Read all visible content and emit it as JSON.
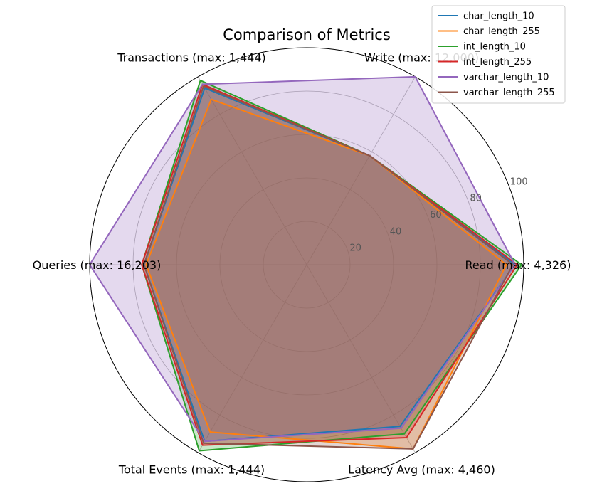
{
  "chart_data": {
    "type": "radar",
    "title": "Comparison of Metrics",
    "axes": [
      "Read (max: 4,326)",
      "Write (max: 12,000)",
      "Transactions (max: 1,444)",
      "Queries (max: 16,203)",
      "Total Events (max: 1,444)",
      "Latency Avg (max: 4,460)"
    ],
    "rlim": [
      0,
      100
    ],
    "r_ticks": [
      20,
      40,
      60,
      80,
      100
    ],
    "grid": true,
    "legend_position": "upper-right",
    "series": [
      {
        "name": "char_length_10",
        "color": "#1f77b4",
        "values": [
          96,
          58,
          94,
          75,
          94,
          86
        ]
      },
      {
        "name": "char_length_255",
        "color": "#ff7f0e",
        "values": [
          92,
          58,
          88,
          74,
          89,
          98
        ]
      },
      {
        "name": "int_length_10",
        "color": "#2ca02c",
        "values": [
          99,
          58,
          98,
          76,
          99,
          90
        ]
      },
      {
        "name": "int_length_255",
        "color": "#d62728",
        "values": [
          97,
          58,
          96,
          76,
          96,
          92
        ]
      },
      {
        "name": "varchar_length_10",
        "color": "#9467bd",
        "values": [
          96,
          100,
          96,
          100,
          94,
          87
        ]
      },
      {
        "name": "varchar_length_255",
        "color": "#8c564b",
        "values": [
          95,
          58,
          95,
          75,
          95,
          98
        ]
      }
    ]
  }
}
